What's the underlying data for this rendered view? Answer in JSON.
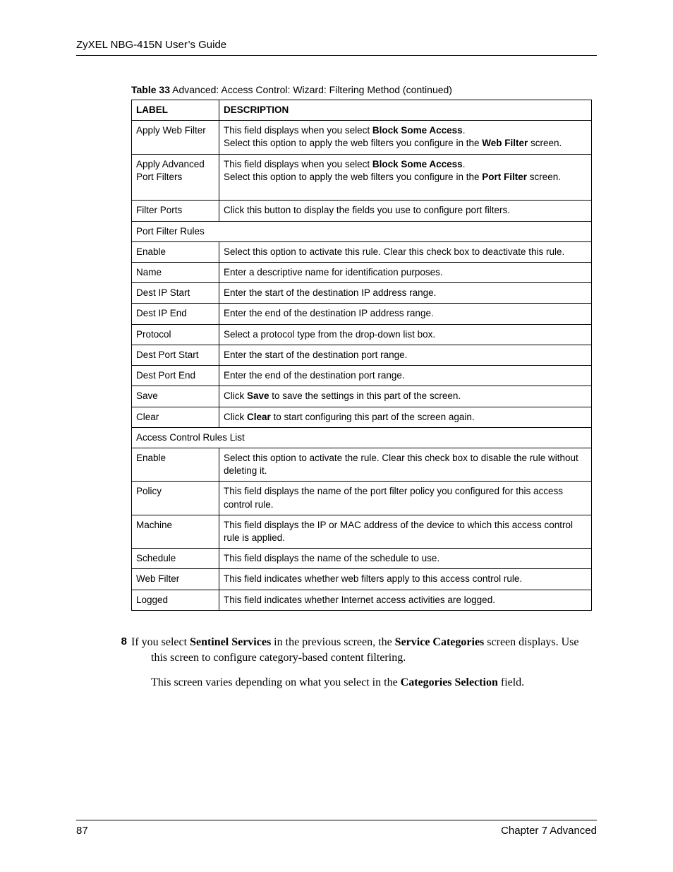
{
  "header": {
    "title": "ZyXEL NBG-415N User’s Guide"
  },
  "table": {
    "caption_prefix": "Table 33",
    "caption_rest": "   Advanced: Access Control: Wizard: Filtering Method (continued)",
    "head": {
      "label": "LABEL",
      "desc": "DESCRIPTION"
    },
    "rows": [
      {
        "label": "Apply Web Filter",
        "desc_html": "This field displays when you select <span class=\"b\">Block Some Access</span>.<br>Select this option to apply the web filters you configure in the <span class=\"b\">Web Filter</span> screen."
      },
      {
        "label": "Apply Advanced Port Filters",
        "desc_html": "This field displays when you select <span class=\"b\">Block Some Access</span>.<br>Select this option to apply the web filters you configure in the <span class=\"b\">Port Filter</span> screen.<br>&nbsp;"
      },
      {
        "label": "Filter Ports",
        "desc_html": "Click this button to display the fields you use to configure port filters."
      },
      {
        "section": true,
        "label": "Port Filter Rules"
      },
      {
        "label": "Enable",
        "desc_html": "Select this option to activate this rule. Clear this check box to deactivate this rule."
      },
      {
        "label": "Name",
        "desc_html": "Enter a descriptive name for identification purposes."
      },
      {
        "label": "Dest IP Start",
        "desc_html": "Enter the start of the destination IP address range."
      },
      {
        "label": "Dest IP End",
        "desc_html": "Enter the end of the destination IP address range."
      },
      {
        "label": "Protocol",
        "desc_html": "Select a protocol type from the drop-down list box."
      },
      {
        "label": "Dest Port Start",
        "desc_html": "Enter the start of the destination port range."
      },
      {
        "label": "Dest Port End",
        "desc_html": "Enter the end of the destination port range."
      },
      {
        "label": "Save",
        "desc_html": "Click <span class=\"b\">Save</span> to save the settings in this part of the screen."
      },
      {
        "label": "Clear",
        "desc_html": "Click <span class=\"b\">Clear</span> to start configuring this part of the screen again."
      },
      {
        "section": true,
        "label": "Access Control Rules List"
      },
      {
        "label": "Enable",
        "desc_html": "Select this option to activate the rule. Clear this check box to disable the rule without deleting it."
      },
      {
        "label": "Policy",
        "desc_html": "This field displays the name of the port filter policy you configured for this access control rule."
      },
      {
        "label": "Machine",
        "desc_html": "This field displays the IP or MAC address of the device to which this access control rule is applied."
      },
      {
        "label": "Schedule",
        "desc_html": "This field displays the name of the schedule to use."
      },
      {
        "label": "Web Filter",
        "desc_html": "This field indicates whether web filters apply to this access control rule."
      },
      {
        "label": "Logged",
        "desc_html": "This field indicates whether Internet access activities are logged."
      }
    ]
  },
  "step": {
    "num": "8",
    "p1_html": "If you select <span class=\"b\">Sentinel Services</span> in the previous screen, the <span class=\"b\">Service Categories</span> screen displays. Use this screen to configure category-based content filtering.",
    "p2_html": "This screen varies depending on what you select in the <span class=\"b\">Categories Selection</span> field."
  },
  "footer": {
    "page": "87",
    "chapter": "Chapter 7 Advanced"
  }
}
